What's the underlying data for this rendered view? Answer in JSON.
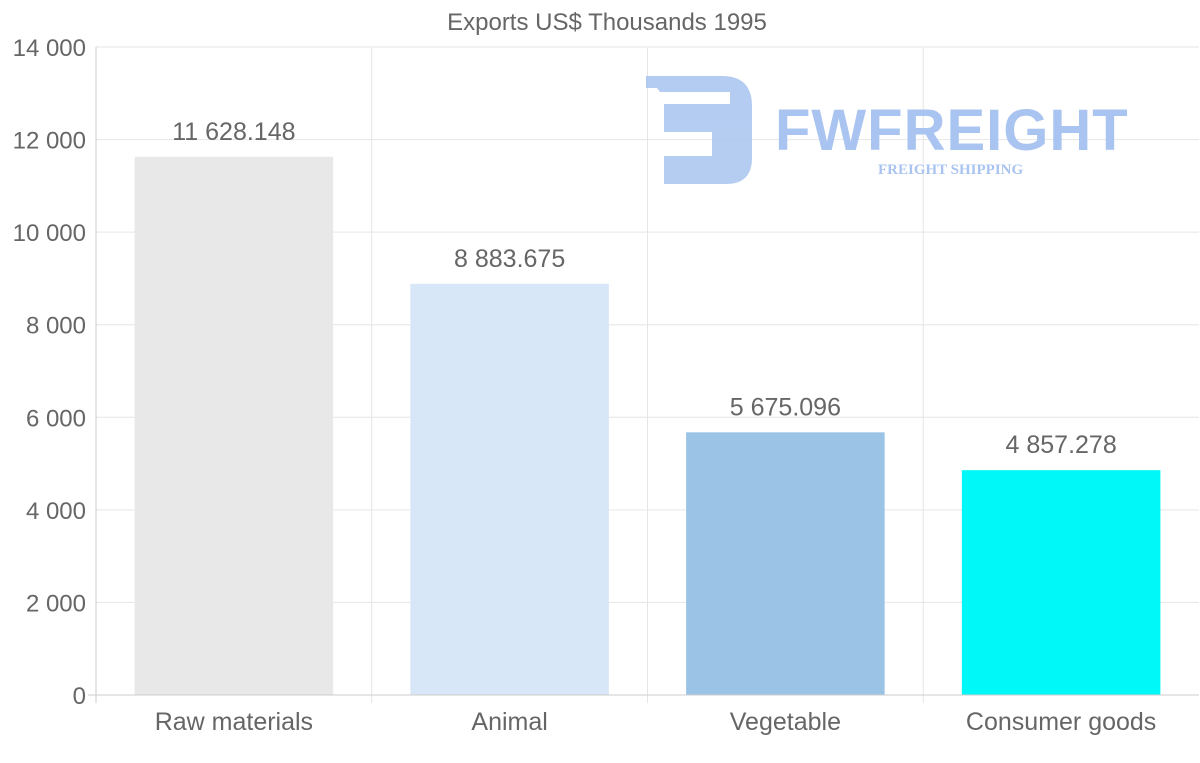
{
  "chart_data": {
    "type": "bar",
    "title": "Exports US$ Thousands 1995",
    "categories": [
      "Raw materials",
      "Animal",
      "Vegetable",
      "Consumer goods"
    ],
    "values": [
      11628.148,
      8883.675,
      5675.096,
      4857.278
    ],
    "value_labels": [
      "11 628.148",
      "8 883.675",
      "5 675.096",
      "4 857.278"
    ],
    "bar_colors": [
      "#e8e8e8",
      "#d8e7f8",
      "#9bc3e6",
      "#00f8f8"
    ],
    "ylim": [
      0,
      14000
    ],
    "y_ticks": [
      0,
      2000,
      4000,
      6000,
      8000,
      10000,
      12000,
      14000
    ],
    "y_tick_labels": [
      "0",
      "2 000",
      "4 000",
      "6 000",
      "8 000",
      "10 000",
      "12 000",
      "14 000"
    ],
    "xlabel": "",
    "ylabel": "",
    "grid": true
  },
  "watermark": {
    "brand": "FWFREIGHT",
    "tagline": "FREIGHT SHIPPING",
    "color": "#a9c4f0"
  }
}
